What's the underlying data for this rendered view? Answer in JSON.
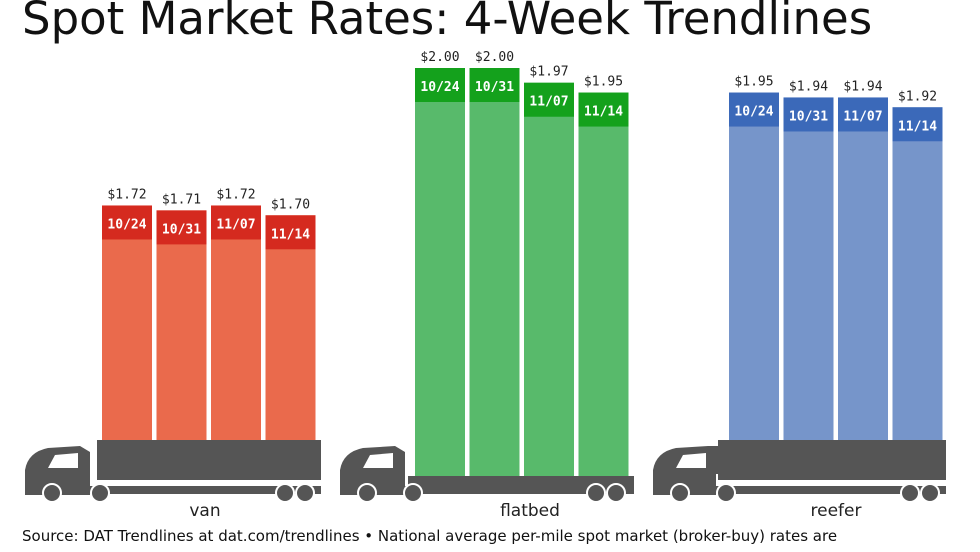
{
  "chart_data": {
    "type": "bar",
    "title": "Spot Market Rates: 4-Week Trendlines",
    "source": "Source: DAT Trendlines at dat.com/trendlines • National average per-mile spot market (broker-buy) rates are",
    "groups": [
      {
        "name": "van",
        "color": "#ea6a4c",
        "band_color": "#d52a1f",
        "dates": [
          "10/24",
          "10/31",
          "11/07",
          "11/14"
        ],
        "values": [
          1.72,
          1.71,
          1.72,
          1.7
        ],
        "value_labels": [
          "$1.72",
          "$1.71",
          "$1.72",
          "$1.70"
        ]
      },
      {
        "name": "flatbed",
        "color": "#58ba6b",
        "band_color": "#14a11c",
        "dates": [
          "10/24",
          "10/31",
          "11/07",
          "11/14"
        ],
        "values": [
          2.0,
          2.0,
          1.97,
          1.95
        ],
        "value_labels": [
          "$2.00",
          "$2.00",
          "$1.97",
          "$1.95"
        ]
      },
      {
        "name": "reefer",
        "color": "#7695ca",
        "band_color": "#3b69b9",
        "dates": [
          "10/24",
          "10/31",
          "11/07",
          "11/14"
        ],
        "values": [
          1.95,
          1.94,
          1.94,
          1.92
        ],
        "value_labels": [
          "$1.95",
          "$1.94",
          "$1.94",
          "$1.92"
        ]
      }
    ]
  }
}
